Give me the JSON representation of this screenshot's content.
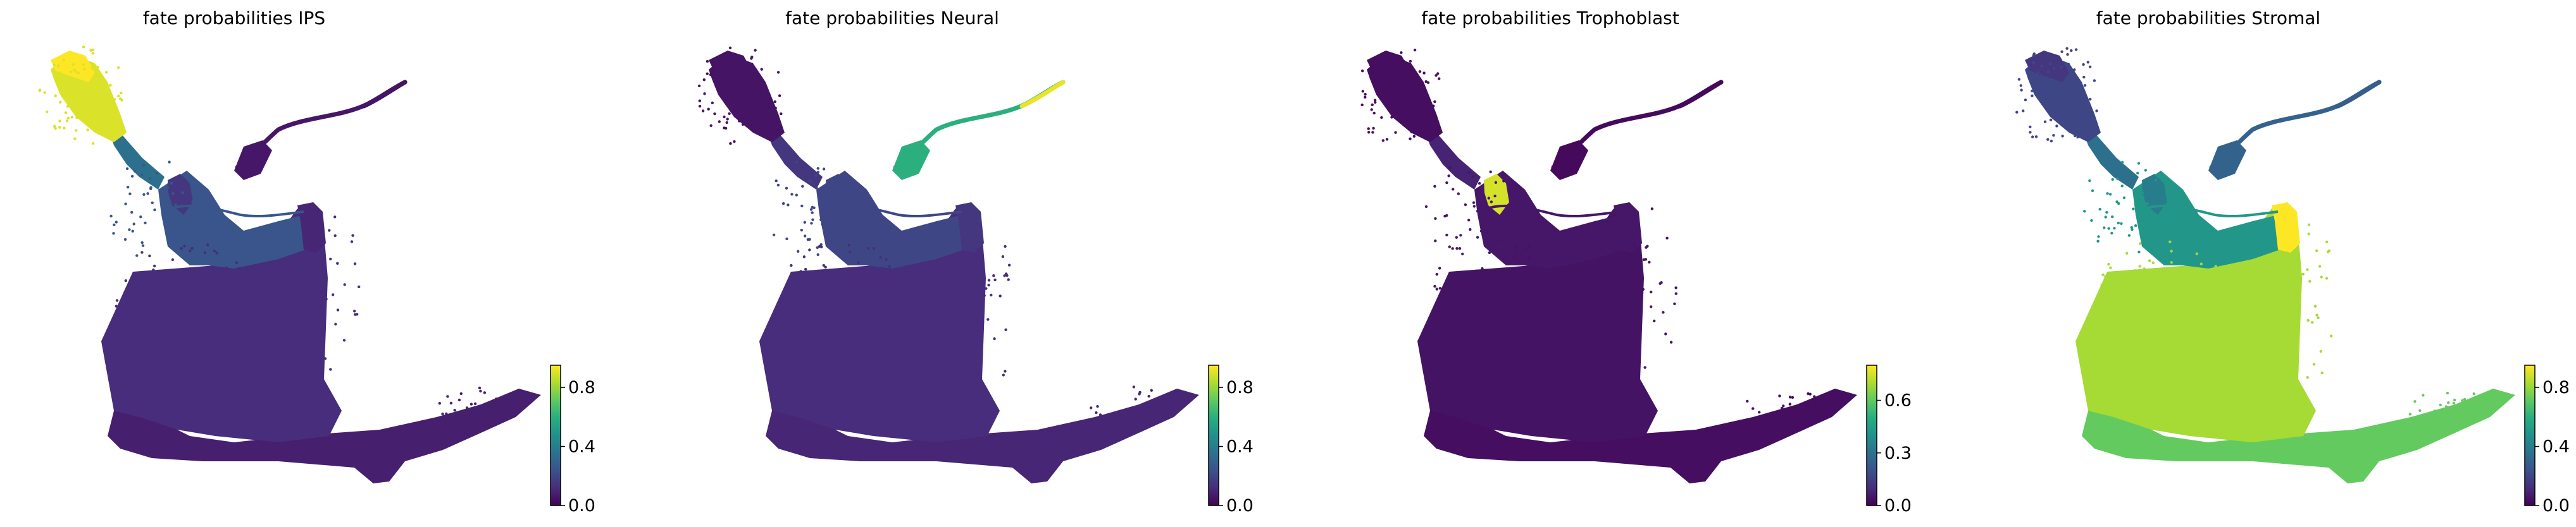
{
  "chart_data": [
    {
      "type": "scatter",
      "title": "fate probabilities IPS",
      "colormap": "viridis",
      "colorbar": {
        "range": [
          0.0,
          0.95
        ],
        "ticks": [
          0.0,
          0.4,
          0.8
        ],
        "tick_labels": [
          "0.0",
          "0.4",
          "0.8"
        ]
      },
      "region_values": {
        "ips_cluster": 0.9,
        "ips_tip": 0.95,
        "bridge": 0.35,
        "upper_body": 0.25,
        "main_body": 0.12,
        "bottom": 0.08,
        "neural_arm": 0.06,
        "neural_tip": 0.05,
        "tropho_patch": 0.15,
        "stromal_patch": 0.1
      }
    },
    {
      "type": "scatter",
      "title": "fate probabilities Neural",
      "colormap": "viridis",
      "colorbar": {
        "range": [
          0.0,
          0.95
        ],
        "ticks": [
          0.0,
          0.4,
          0.8
        ],
        "tick_labels": [
          "0.0",
          "0.4",
          "0.8"
        ]
      },
      "region_values": {
        "ips_cluster": 0.05,
        "ips_tip": 0.05,
        "bridge": 0.15,
        "upper_body": 0.2,
        "main_body": 0.12,
        "bottom": 0.1,
        "neural_arm": 0.6,
        "neural_tip": 0.92,
        "tropho_patch": 0.2,
        "stromal_patch": 0.15
      }
    },
    {
      "type": "scatter",
      "title": "fate probabilities Trophoblast",
      "colormap": "viridis",
      "colorbar": {
        "range": [
          0.0,
          0.8
        ],
        "ticks": [
          0.0,
          0.3,
          0.6
        ],
        "tick_labels": [
          "0.0",
          "0.3",
          "0.6"
        ]
      },
      "region_values": {
        "ips_cluster": 0.03,
        "ips_tip": 0.03,
        "bridge": 0.08,
        "upper_body": 0.05,
        "main_body": 0.04,
        "bottom": 0.03,
        "neural_arm": 0.02,
        "neural_tip": 0.02,
        "tropho_patch": 0.75,
        "stromal_patch": 0.05
      }
    },
    {
      "type": "scatter",
      "title": "fate probabilities Stromal",
      "colormap": "viridis",
      "colorbar": {
        "range": [
          0.0,
          0.95
        ],
        "ticks": [
          0.0,
          0.4,
          0.8
        ],
        "tick_labels": [
          "0.0",
          "0.4",
          "0.8"
        ]
      },
      "region_values": {
        "ips_cluster": 0.2,
        "ips_tip": 0.15,
        "bridge": 0.35,
        "upper_body": 0.5,
        "main_body": 0.82,
        "bottom": 0.72,
        "neural_arm": 0.3,
        "neural_tip": 0.28,
        "tropho_patch": 0.4,
        "stromal_patch": 0.95
      }
    }
  ]
}
